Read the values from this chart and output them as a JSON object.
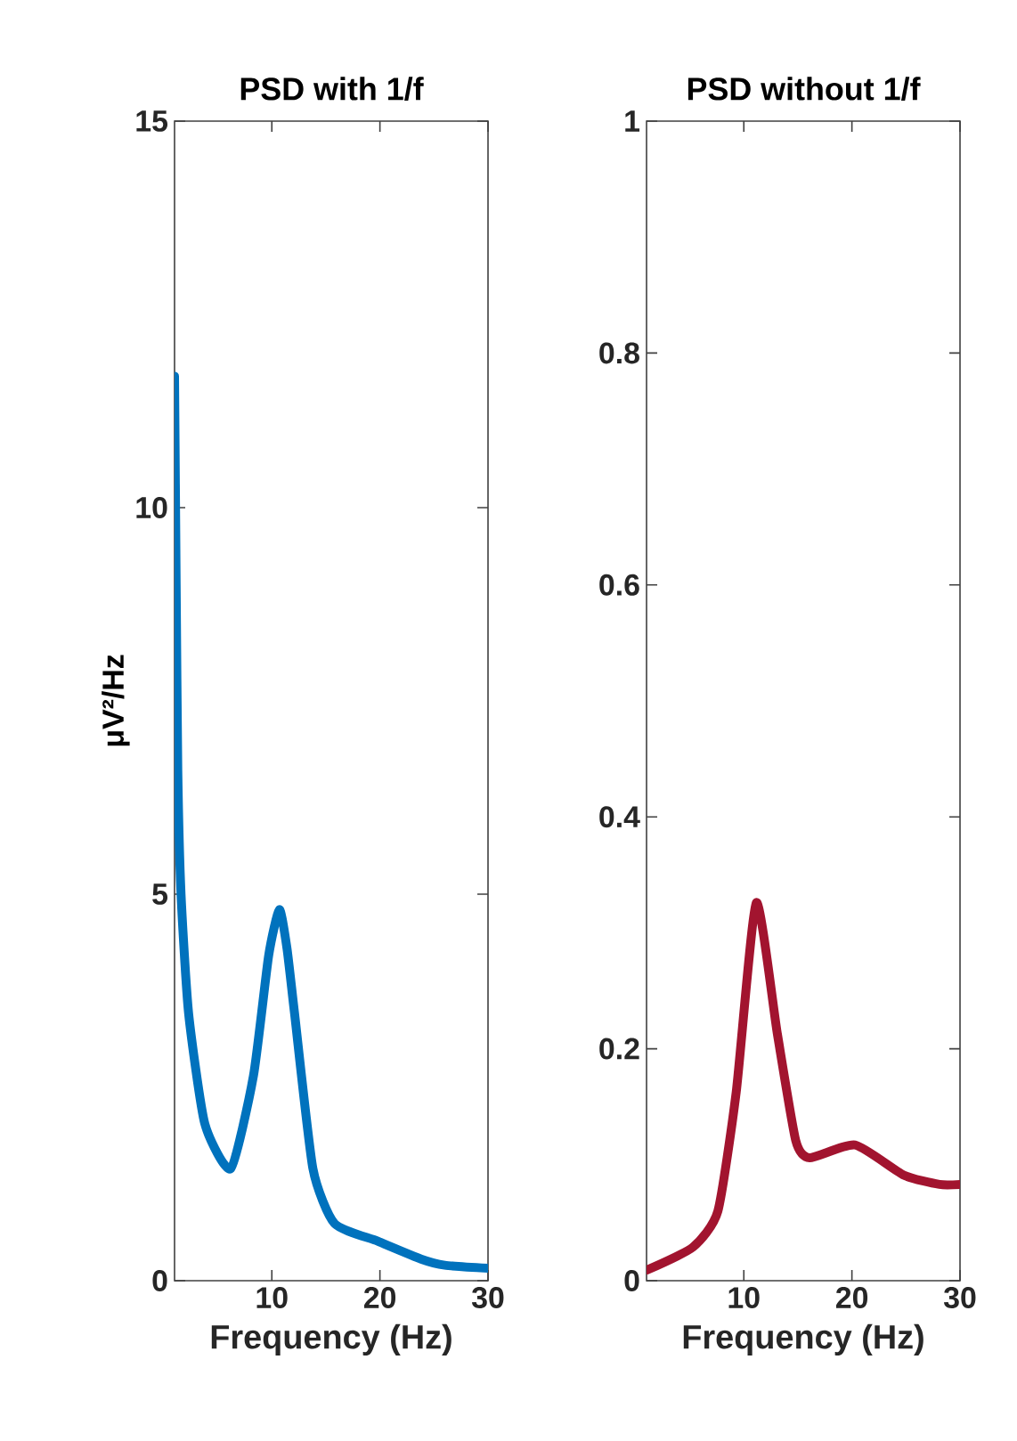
{
  "chart_data": [
    {
      "type": "line",
      "title": "PSD with 1/f",
      "xlabel": "Frequency (Hz)",
      "ylabel": "μV²/Hz",
      "xlim": [
        1,
        30
      ],
      "ylim": [
        0,
        15
      ],
      "xticks": [
        10,
        20,
        30
      ],
      "yticks": [
        0,
        5,
        10,
        15
      ],
      "series": [
        {
          "color": "#0072bd",
          "x": [
            1,
            1.15,
            1.3,
            1.6,
            2.3,
            3.8,
            6.2,
            8.3,
            9.7,
            10.7,
            11.4,
            12.1,
            13.8,
            15.8,
            19.8,
            23.8,
            26,
            30
          ],
          "values": [
            11.7,
            9.0,
            6.6,
            5.0,
            3.46,
            2.03,
            1.45,
            2.65,
            4.2,
            4.8,
            4.3,
            3.46,
            1.45,
            0.74,
            0.51,
            0.28,
            0.2,
            0.16
          ]
        }
      ]
    },
    {
      "type": "line",
      "title": "PSD without 1/f",
      "xlabel": "Frequency (Hz)",
      "xlim": [
        1,
        30
      ],
      "ylim": [
        0,
        1
      ],
      "xticks": [
        10,
        20,
        30
      ],
      "yticks": [
        0,
        0.2,
        0.4,
        0.6,
        0.8,
        1
      ],
      "series": [
        {
          "color": "#a2142f",
          "x": [
            1,
            5.3,
            7.6,
            9.3,
            11.15,
            13.1,
            14.8,
            16.1,
            20.3,
            24.8,
            28.1,
            30
          ],
          "values": [
            0.009,
            0.029,
            0.06,
            0.163,
            0.326,
            0.213,
            0.121,
            0.106,
            0.117,
            0.091,
            0.083,
            0.083
          ]
        }
      ]
    }
  ]
}
